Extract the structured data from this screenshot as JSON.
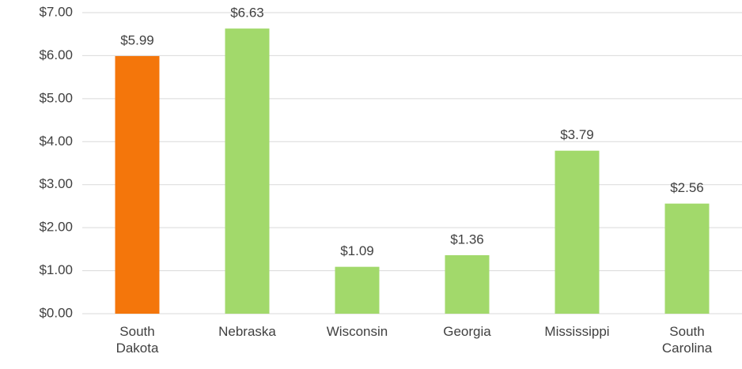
{
  "chart_data": {
    "type": "bar",
    "categories": [
      "South Dakota",
      "Nebraska",
      "Wisconsin",
      "Georgia",
      "Mississippi",
      "South Carolina"
    ],
    "values": [
      5.99,
      6.63,
      1.09,
      1.36,
      3.79,
      2.56
    ],
    "value_labels": [
      "$5.99",
      "$6.63",
      "$1.09",
      "$1.36",
      "$3.79",
      "$2.56"
    ],
    "colors": [
      "#f4760b",
      "#a2d96b",
      "#a2d96b",
      "#a2d96b",
      "#a2d96b",
      "#a2d96b"
    ],
    "ylim": [
      0,
      7
    ],
    "yticks": [
      {
        "value": 0,
        "label": "$0.00"
      },
      {
        "value": 1,
        "label": "$1.00"
      },
      {
        "value": 2,
        "label": "$2.00"
      },
      {
        "value": 3,
        "label": "$3.00"
      },
      {
        "value": 4,
        "label": "$4.00"
      },
      {
        "value": 5,
        "label": "$5.00"
      },
      {
        "value": 6,
        "label": "$6.00"
      },
      {
        "value": 7,
        "label": "$7.00"
      }
    ],
    "grid": true
  }
}
